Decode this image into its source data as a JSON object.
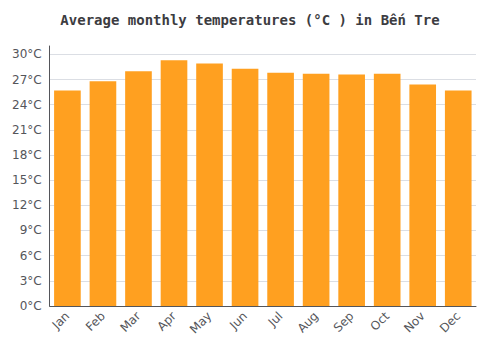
{
  "chart_data": {
    "type": "bar",
    "title": "Average monthly temperatures (°C ) in Bến Tre",
    "categories": [
      "Jan",
      "Feb",
      "Mar",
      "Apr",
      "May",
      "Jun",
      "Jul",
      "Aug",
      "Sep",
      "Oct",
      "Nov",
      "Dec"
    ],
    "values": [
      25.7,
      26.8,
      28.0,
      29.3,
      28.9,
      28.3,
      27.8,
      27.7,
      27.6,
      27.7,
      26.4,
      25.7
    ],
    "color": "#FFA020",
    "ylim": [
      0,
      31
    ],
    "yticks": [
      {
        "value": 0,
        "label": "0°C"
      },
      {
        "value": 3,
        "label": "3°C"
      },
      {
        "value": 6,
        "label": "6°C"
      },
      {
        "value": 9,
        "label": "9°C"
      },
      {
        "value": 12,
        "label": "12°C"
      },
      {
        "value": 15,
        "label": "15°C"
      },
      {
        "value": 18,
        "label": "18°C"
      },
      {
        "value": 21,
        "label": "21°C"
      },
      {
        "value": 24,
        "label": "24°C"
      },
      {
        "value": 27,
        "label": "27°C"
      },
      {
        "value": 30,
        "label": "30°C"
      }
    ],
    "grid": true
  }
}
